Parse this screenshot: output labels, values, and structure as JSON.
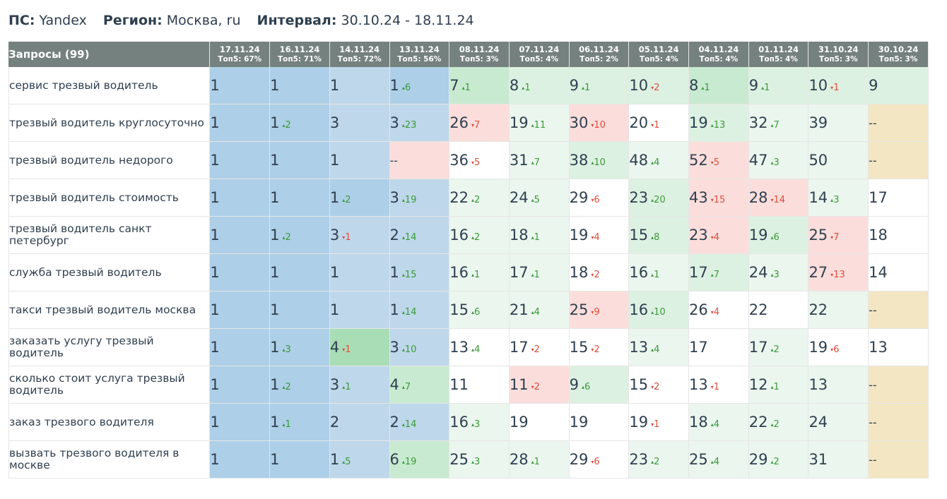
{
  "header": {
    "ps_label": "ПС:",
    "ps_value": "Yandex",
    "region_label": "Регион:",
    "region_value": "Москва, ru",
    "interval_label": "Интервал:",
    "interval_value": "30.10.24 - 18.11.24"
  },
  "table": {
    "query_header": "Запросы (99)",
    "columns": [
      {
        "date": "17.11.24",
        "top5": "Топ5: 67%"
      },
      {
        "date": "16.11.24",
        "top5": "Топ5: 71%"
      },
      {
        "date": "14.11.24",
        "top5": "Топ5: 72%"
      },
      {
        "date": "13.11.24",
        "top5": "Топ5: 56%"
      },
      {
        "date": "08.11.24",
        "top5": "Топ5: 3%"
      },
      {
        "date": "07.11.24",
        "top5": "Топ5: 4%"
      },
      {
        "date": "06.11.24",
        "top5": "Топ5: 2%"
      },
      {
        "date": "05.11.24",
        "top5": "Топ5: 4%"
      },
      {
        "date": "04.11.24",
        "top5": "Топ5: 4%"
      },
      {
        "date": "01.11.24",
        "top5": "Топ5: 4%"
      },
      {
        "date": "31.10.24",
        "top5": "Топ5: 3%"
      },
      {
        "date": "30.10.24",
        "top5": "Топ5: 3%"
      }
    ],
    "rows": [
      {
        "query": "сервис трезвый водитель",
        "cells": [
          {
            "v": "1",
            "c": "b1"
          },
          {
            "v": "1",
            "c": "b1"
          },
          {
            "v": "1",
            "c": "b2"
          },
          {
            "v": "1",
            "d": "6",
            "dir": "up",
            "c": "b1"
          },
          {
            "v": "7",
            "d": "1",
            "dir": "up",
            "c": "g2"
          },
          {
            "v": "8",
            "d": "1",
            "dir": "up",
            "c": "g3"
          },
          {
            "v": "9",
            "d": "1",
            "dir": "up",
            "c": "g3"
          },
          {
            "v": "10",
            "d": "2",
            "dir": "down",
            "c": "g3"
          },
          {
            "v": "8",
            "d": "1",
            "dir": "up",
            "c": "g2"
          },
          {
            "v": "9",
            "d": "1",
            "dir": "up",
            "c": "g3"
          },
          {
            "v": "10",
            "d": "1",
            "dir": "down",
            "c": "g3"
          },
          {
            "v": "9",
            "c": "g3"
          }
        ]
      },
      {
        "query": "трезвый водитель круглосуточно",
        "cells": [
          {
            "v": "1",
            "c": "b1"
          },
          {
            "v": "1",
            "d": "2",
            "dir": "up",
            "c": "b1"
          },
          {
            "v": "3",
            "c": "b2"
          },
          {
            "v": "3",
            "d": "23",
            "dir": "up",
            "c": "b2"
          },
          {
            "v": "26",
            "d": "7",
            "dir": "down",
            "c": "r1"
          },
          {
            "v": "19",
            "d": "11",
            "dir": "up",
            "c": "g4"
          },
          {
            "v": "30",
            "d": "10",
            "dir": "down",
            "c": "r1"
          },
          {
            "v": "20",
            "d": "1",
            "dir": "down",
            "c": "w1"
          },
          {
            "v": "19",
            "d": "13",
            "dir": "up",
            "c": "g3"
          },
          {
            "v": "32",
            "d": "7",
            "dir": "up",
            "c": "g4"
          },
          {
            "v": "39",
            "c": "g4"
          },
          {
            "v": "--",
            "c": "y1"
          }
        ]
      },
      {
        "query": "трезвый водитель недорого",
        "cells": [
          {
            "v": "1",
            "c": "b1"
          },
          {
            "v": "1",
            "c": "b1"
          },
          {
            "v": "1",
            "c": "b2"
          },
          {
            "v": "--",
            "c": "r1"
          },
          {
            "v": "36",
            "d": "5",
            "dir": "down",
            "c": "w1"
          },
          {
            "v": "31",
            "d": "7",
            "dir": "up",
            "c": "g4"
          },
          {
            "v": "38",
            "d": "10",
            "dir": "up",
            "c": "g3"
          },
          {
            "v": "48",
            "d": "4",
            "dir": "up",
            "c": "g4"
          },
          {
            "v": "52",
            "d": "5",
            "dir": "down",
            "c": "r1"
          },
          {
            "v": "47",
            "d": "3",
            "dir": "up",
            "c": "g4"
          },
          {
            "v": "50",
            "c": "g4"
          },
          {
            "v": "--",
            "c": "y1"
          }
        ]
      },
      {
        "query": "трезвый водитель стоимость",
        "cells": [
          {
            "v": "1",
            "c": "b1"
          },
          {
            "v": "1",
            "c": "b1"
          },
          {
            "v": "1",
            "d": "2",
            "dir": "up",
            "c": "b1"
          },
          {
            "v": "3",
            "d": "19",
            "dir": "up",
            "c": "b2"
          },
          {
            "v": "22",
            "d": "2",
            "dir": "up",
            "c": "g4"
          },
          {
            "v": "24",
            "d": "5",
            "dir": "up",
            "c": "g4"
          },
          {
            "v": "29",
            "d": "6",
            "dir": "down",
            "c": "w1"
          },
          {
            "v": "23",
            "d": "20",
            "dir": "up",
            "c": "g3"
          },
          {
            "v": "43",
            "d": "15",
            "dir": "down",
            "c": "r1"
          },
          {
            "v": "28",
            "d": "14",
            "dir": "down",
            "c": "r1"
          },
          {
            "v": "14",
            "d": "3",
            "dir": "up",
            "c": "g4"
          },
          {
            "v": "17",
            "c": "w1"
          }
        ]
      },
      {
        "query": "трезвый водитель санкт петербург",
        "cells": [
          {
            "v": "1",
            "c": "b1"
          },
          {
            "v": "1",
            "d": "2",
            "dir": "up",
            "c": "b1"
          },
          {
            "v": "3",
            "d": "1",
            "dir": "down",
            "c": "b2"
          },
          {
            "v": "2",
            "d": "14",
            "dir": "up",
            "c": "b2"
          },
          {
            "v": "16",
            "d": "2",
            "dir": "up",
            "c": "g4"
          },
          {
            "v": "18",
            "d": "1",
            "dir": "up",
            "c": "g4"
          },
          {
            "v": "19",
            "d": "4",
            "dir": "down",
            "c": "w1"
          },
          {
            "v": "15",
            "d": "8",
            "dir": "up",
            "c": "g3"
          },
          {
            "v": "23",
            "d": "4",
            "dir": "down",
            "c": "r1"
          },
          {
            "v": "19",
            "d": "6",
            "dir": "up",
            "c": "g3"
          },
          {
            "v": "25",
            "d": "7",
            "dir": "down",
            "c": "r1"
          },
          {
            "v": "18",
            "c": "w1"
          }
        ]
      },
      {
        "query": "служба трезвый водитель",
        "cells": [
          {
            "v": "1",
            "c": "b1"
          },
          {
            "v": "1",
            "c": "b1"
          },
          {
            "v": "1",
            "c": "b2"
          },
          {
            "v": "1",
            "d": "15",
            "dir": "up",
            "c": "b2"
          },
          {
            "v": "16",
            "d": "1",
            "dir": "up",
            "c": "g4"
          },
          {
            "v": "17",
            "d": "1",
            "dir": "up",
            "c": "g4"
          },
          {
            "v": "18",
            "d": "2",
            "dir": "down",
            "c": "w1"
          },
          {
            "v": "16",
            "d": "1",
            "dir": "up",
            "c": "g4"
          },
          {
            "v": "17",
            "d": "7",
            "dir": "up",
            "c": "g3"
          },
          {
            "v": "24",
            "d": "3",
            "dir": "up",
            "c": "g4"
          },
          {
            "v": "27",
            "d": "13",
            "dir": "down",
            "c": "r1"
          },
          {
            "v": "14",
            "c": "w1"
          }
        ]
      },
      {
        "query": "такси трезвый водитель москва",
        "cells": [
          {
            "v": "1",
            "c": "b1"
          },
          {
            "v": "1",
            "c": "b1"
          },
          {
            "v": "1",
            "c": "b2"
          },
          {
            "v": "1",
            "d": "14",
            "dir": "up",
            "c": "b2"
          },
          {
            "v": "15",
            "d": "6",
            "dir": "up",
            "c": "g4"
          },
          {
            "v": "21",
            "d": "4",
            "dir": "up",
            "c": "g4"
          },
          {
            "v": "25",
            "d": "9",
            "dir": "down",
            "c": "r1"
          },
          {
            "v": "16",
            "d": "10",
            "dir": "up",
            "c": "g3"
          },
          {
            "v": "26",
            "d": "4",
            "dir": "down",
            "c": "w1"
          },
          {
            "v": "22",
            "c": "w1"
          },
          {
            "v": "22",
            "c": "g4"
          },
          {
            "v": "--",
            "c": "y1"
          }
        ]
      },
      {
        "query": "заказать услугу трезвый водитель",
        "cells": [
          {
            "v": "1",
            "c": "b1"
          },
          {
            "v": "1",
            "d": "3",
            "dir": "up",
            "c": "b1"
          },
          {
            "v": "4",
            "d": "1",
            "dir": "down",
            "c": "g1"
          },
          {
            "v": "3",
            "d": "10",
            "dir": "up",
            "c": "b2"
          },
          {
            "v": "13",
            "d": "4",
            "dir": "up",
            "c": "w1"
          },
          {
            "v": "17",
            "d": "2",
            "dir": "down",
            "c": "w1"
          },
          {
            "v": "15",
            "d": "2",
            "dir": "down",
            "c": "w1"
          },
          {
            "v": "13",
            "d": "4",
            "dir": "up",
            "c": "g4"
          },
          {
            "v": "17",
            "c": "w1"
          },
          {
            "v": "17",
            "d": "2",
            "dir": "up",
            "c": "g4"
          },
          {
            "v": "19",
            "d": "6",
            "dir": "down",
            "c": "w1"
          },
          {
            "v": "13",
            "c": "w1"
          }
        ]
      },
      {
        "query": "сколько стоит услуга трезвый водитель",
        "cells": [
          {
            "v": "1",
            "c": "b1"
          },
          {
            "v": "1",
            "d": "2",
            "dir": "up",
            "c": "b1"
          },
          {
            "v": "3",
            "d": "1",
            "dir": "up",
            "c": "b2"
          },
          {
            "v": "4",
            "d": "7",
            "dir": "up",
            "c": "g2"
          },
          {
            "v": "11",
            "c": "w1"
          },
          {
            "v": "11",
            "d": "2",
            "dir": "down",
            "c": "r1"
          },
          {
            "v": "9",
            "d": "6",
            "dir": "up",
            "c": "g3"
          },
          {
            "v": "15",
            "d": "2",
            "dir": "down",
            "c": "w1"
          },
          {
            "v": "13",
            "d": "1",
            "dir": "down",
            "c": "w1"
          },
          {
            "v": "12",
            "d": "1",
            "dir": "up",
            "c": "g4"
          },
          {
            "v": "13",
            "c": "g4"
          },
          {
            "v": "--",
            "c": "y1"
          }
        ]
      },
      {
        "query": "заказ трезвого водителя",
        "cells": [
          {
            "v": "1",
            "c": "b1"
          },
          {
            "v": "1",
            "d": "1",
            "dir": "up",
            "c": "b1"
          },
          {
            "v": "2",
            "c": "b2"
          },
          {
            "v": "2",
            "d": "14",
            "dir": "up",
            "c": "b2"
          },
          {
            "v": "16",
            "d": "3",
            "dir": "up",
            "c": "g4"
          },
          {
            "v": "19",
            "c": "w1"
          },
          {
            "v": "19",
            "c": "w1"
          },
          {
            "v": "19",
            "d": "1",
            "dir": "down",
            "c": "w1"
          },
          {
            "v": "18",
            "d": "4",
            "dir": "up",
            "c": "g4"
          },
          {
            "v": "22",
            "d": "2",
            "dir": "up",
            "c": "g4"
          },
          {
            "v": "24",
            "c": "g4"
          },
          {
            "v": "--",
            "c": "y1"
          }
        ]
      },
      {
        "query": "вызвать трезвого водителя в москве",
        "cells": [
          {
            "v": "1",
            "c": "b1"
          },
          {
            "v": "1",
            "c": "b1"
          },
          {
            "v": "1",
            "d": "5",
            "dir": "up",
            "c": "b2"
          },
          {
            "v": "6",
            "d": "19",
            "dir": "up",
            "c": "g2"
          },
          {
            "v": "25",
            "d": "3",
            "dir": "up",
            "c": "g4"
          },
          {
            "v": "28",
            "d": "1",
            "dir": "up",
            "c": "g4"
          },
          {
            "v": "29",
            "d": "6",
            "dir": "down",
            "c": "w1"
          },
          {
            "v": "23",
            "d": "2",
            "dir": "up",
            "c": "g4"
          },
          {
            "v": "25",
            "d": "4",
            "dir": "up",
            "c": "g4"
          },
          {
            "v": "29",
            "d": "2",
            "dir": "up",
            "c": "g4"
          },
          {
            "v": "31",
            "c": "g4"
          },
          {
            "v": "--",
            "c": "y1"
          }
        ]
      }
    ]
  }
}
